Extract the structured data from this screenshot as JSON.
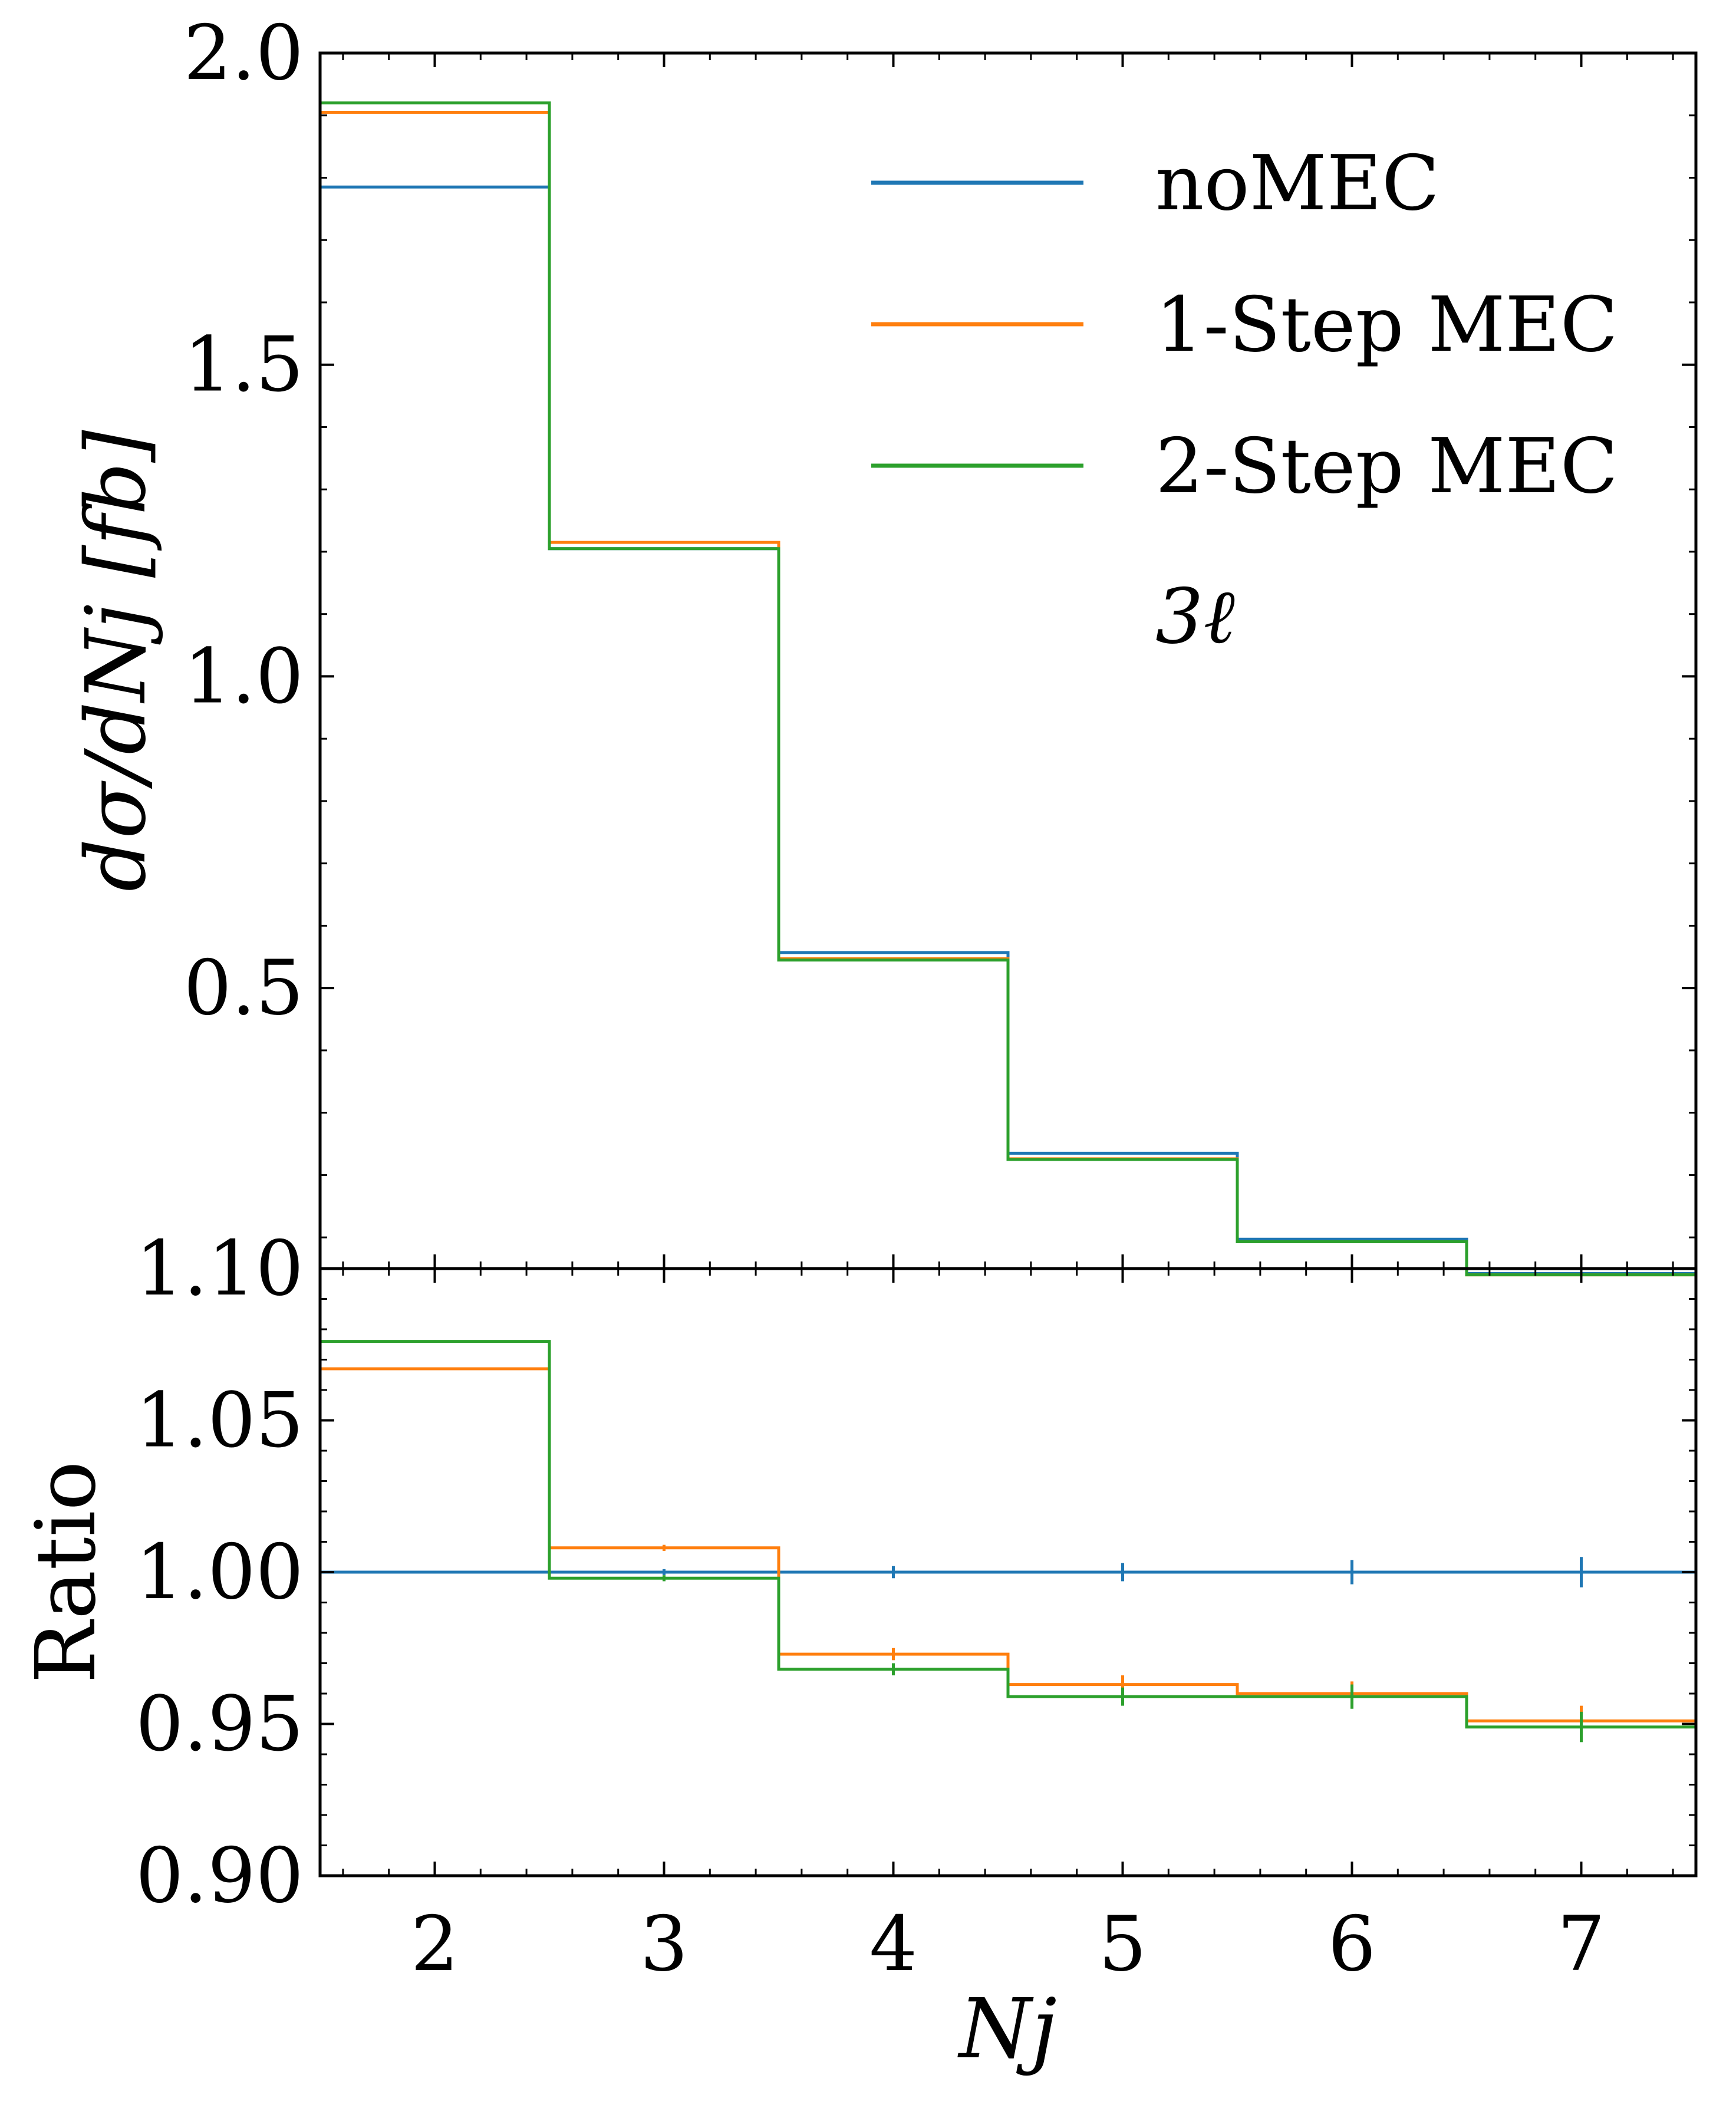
{
  "colors": {
    "noMEC": "#1f77b4",
    "oneStep": "#ff7f0e",
    "twoStep": "#2ca02c",
    "axis": "#000000",
    "background": "#ffffff"
  },
  "chart_data": [
    {
      "id": "main",
      "type": "line",
      "drawstyle": "step",
      "ylabel": "dσ/dNj [fb]",
      "xlim": [
        1.5,
        7.5
      ],
      "ylim": [
        0.05,
        2.0
      ],
      "yticks": [
        {
          "value": 0.5,
          "label": "0.5"
        },
        {
          "value": 1.0,
          "label": "1.0"
        },
        {
          "value": 1.5,
          "label": "1.5"
        },
        {
          "value": 2.0,
          "label": "2.0"
        }
      ],
      "x": [
        2,
        3,
        4,
        5,
        6,
        7
      ],
      "series": [
        {
          "name": "noMEC",
          "key": "noMEC",
          "values": [
            1.785,
            1.205,
            0.557,
            0.235,
            0.097,
            0.042
          ]
        },
        {
          "name": "1-Step MEC",
          "key": "oneStep",
          "values": [
            1.905,
            1.215,
            0.547,
            0.226,
            0.093,
            0.04
          ]
        },
        {
          "name": "2-Step MEC",
          "key": "twoStep",
          "values": [
            1.92,
            1.205,
            0.545,
            0.225,
            0.093,
            0.04
          ]
        }
      ],
      "legend": {
        "placement": "top-right",
        "extra_label": "3ℓ"
      }
    },
    {
      "id": "ratio",
      "type": "line",
      "drawstyle": "step",
      "ylabel": "Ratio",
      "xlabel": "Nj",
      "xlim": [
        1.5,
        7.5
      ],
      "ylim": [
        0.9,
        1.1
      ],
      "yticks": [
        {
          "value": 0.9,
          "label": "0.90"
        },
        {
          "value": 0.95,
          "label": "0.95"
        },
        {
          "value": 1.0,
          "label": "1.00"
        },
        {
          "value": 1.05,
          "label": "1.05"
        },
        {
          "value": 1.1,
          "label": "1.10"
        }
      ],
      "xticks": [
        {
          "value": 2,
          "label": "2"
        },
        {
          "value": 3,
          "label": "3"
        },
        {
          "value": 4,
          "label": "4"
        },
        {
          "value": 5,
          "label": "5"
        },
        {
          "value": 6,
          "label": "6"
        },
        {
          "value": 7,
          "label": "7"
        }
      ],
      "x": [
        2,
        3,
        4,
        5,
        6,
        7
      ],
      "series": [
        {
          "name": "noMEC",
          "key": "noMEC",
          "values": [
            1.0,
            1.0,
            1.0,
            1.0,
            1.0,
            1.0
          ],
          "errors": [
            0.0004,
            0.001,
            0.002,
            0.003,
            0.004,
            0.005
          ]
        },
        {
          "name": "1-Step MEC",
          "key": "oneStep",
          "values": [
            1.067,
            1.008,
            0.973,
            0.963,
            0.96,
            0.951
          ],
          "errors": [
            0.0004,
            0.001,
            0.002,
            0.003,
            0.004,
            0.005
          ]
        },
        {
          "name": "2-Step MEC",
          "key": "twoStep",
          "values": [
            1.076,
            0.998,
            0.968,
            0.959,
            0.959,
            0.949
          ],
          "errors": [
            0.0004,
            0.001,
            0.002,
            0.003,
            0.004,
            0.005
          ]
        }
      ]
    }
  ]
}
